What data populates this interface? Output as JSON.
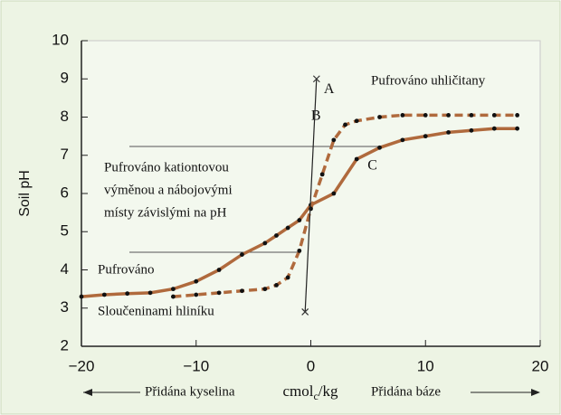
{
  "chart_data": {
    "type": "line",
    "y_label": "Soil pH",
    "x_label": {
      "main": "cmol",
      "sub": "c",
      "rest": "/kg"
    },
    "xlim": [
      -20,
      20
    ],
    "ylim": [
      2,
      10
    ],
    "xticks": [
      {
        "value": -20,
        "label": "−20"
      },
      {
        "value": -10,
        "label": "−10"
      },
      0,
      10,
      20
    ],
    "yticks": [
      2,
      3,
      4,
      5,
      6,
      7,
      8,
      9,
      10
    ],
    "series": [
      {
        "name": "C",
        "color": "#b06a3d",
        "style": "solid",
        "marker": "dot",
        "x": [
          -20,
          -18,
          -16,
          -14,
          -12,
          -10,
          -8,
          -6,
          -4,
          -3,
          -2,
          -1,
          0,
          2,
          4,
          6,
          8,
          10,
          12,
          14,
          16,
          18
        ],
        "values": [
          3.3,
          3.35,
          3.38,
          3.4,
          3.5,
          3.7,
          4.0,
          4.4,
          4.7,
          4.9,
          5.1,
          5.3,
          5.7,
          6.0,
          6.9,
          7.2,
          7.4,
          7.5,
          7.6,
          7.65,
          7.7,
          7.7
        ]
      },
      {
        "name": "B",
        "color": "#b06a3d",
        "style": "dashed",
        "marker": "dot",
        "x": [
          -12,
          -10,
          -8,
          -6,
          -4,
          -3,
          -2,
          -1,
          0,
          1,
          2,
          3,
          4,
          6,
          8,
          10,
          12,
          14,
          16,
          18
        ],
        "values": [
          3.3,
          3.35,
          3.4,
          3.45,
          3.5,
          3.6,
          3.8,
          4.5,
          5.6,
          6.5,
          7.4,
          7.8,
          7.9,
          8.0,
          8.05,
          8.05,
          8.05,
          8.05,
          8.05,
          8.05
        ]
      },
      {
        "name": "A",
        "color": "#222222",
        "style": "thin",
        "marker": "cross",
        "x": [
          0.5,
          -0.5
        ],
        "values": [
          9,
          2.9
        ]
      }
    ],
    "annotations": {
      "carbonate": "Pufrováno uhličitany",
      "cation": [
        "Pufrováno kationtovou",
        "výměnou a nábojovými",
        "místy závislými na pH"
      ],
      "aluminium_1": "Pufrováno",
      "aluminium_2": "Sloučeninami hliníku",
      "acid": "Přidána kyselina",
      "base": "Přidána báze"
    }
  }
}
